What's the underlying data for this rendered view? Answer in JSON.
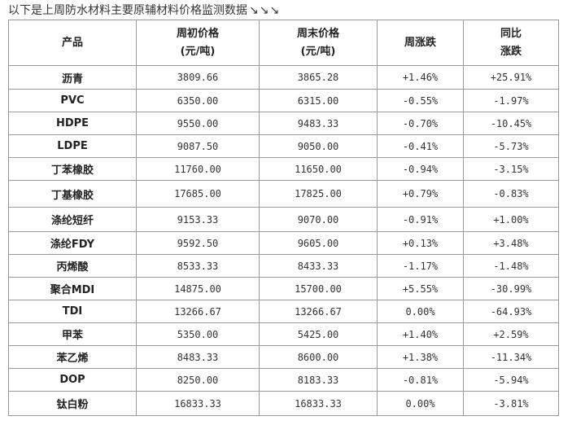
{
  "intro": {
    "text": "以下是上周防水材料主要原辅材料价格监测数据",
    "arrows": "↘↘↘"
  },
  "header": {
    "product": "产品",
    "start_price_line1": "周初价格",
    "start_price_line2": "(元/吨)",
    "end_price_line1": "周末价格",
    "end_price_line2": "(元/吨)",
    "weekly_change": "周涨跌",
    "yoy_line1": "同比",
    "yoy_line2": "涨跌"
  },
  "colors": {
    "up": "#e00000",
    "down": "#008000",
    "border": "#9a9a9a"
  },
  "rows": [
    {
      "name": "沥青",
      "start": "3809.66",
      "end": "3865.28",
      "weekly": "+1.46%",
      "yoy": "+25.91%"
    },
    {
      "name": "PVC",
      "start": "6350.00",
      "end": "6315.00",
      "weekly": "-0.55%",
      "yoy": "-1.97%"
    },
    {
      "name": "HDPE",
      "start": "9550.00",
      "end": "9483.33",
      "weekly": "-0.70%",
      "yoy": "-10.45%"
    },
    {
      "name": "LDPE",
      "start": "9087.50",
      "end": "9050.00",
      "weekly": "-0.41%",
      "yoy": "-5.73%"
    },
    {
      "name": "丁苯橡胶",
      "start": "11760.00",
      "end": "11650.00",
      "weekly": "-0.94%",
      "yoy": "-3.15%"
    },
    {
      "name": "丁基橡胶",
      "start": "17685.00",
      "end": "17825.00",
      "weekly": "+0.79%",
      "yoy": "-0.83%"
    },
    {
      "name": "涤纶短纤",
      "start": "9153.33",
      "end": "9070.00",
      "weekly": "-0.91%",
      "yoy": "+1.00%"
    },
    {
      "name": "涤纶FDY",
      "start": "9592.50",
      "end": "9605.00",
      "weekly": "+0.13%",
      "yoy": "+3.48%"
    },
    {
      "name": "丙烯酸",
      "start": "8533.33",
      "end": "8433.33",
      "weekly": "-1.17%",
      "yoy": "-1.48%"
    },
    {
      "name": "聚合MDI",
      "start": "14875.00",
      "end": "15700.00",
      "weekly": "+5.55%",
      "yoy": "-30.99%"
    },
    {
      "name": "TDI",
      "start": "13266.67",
      "end": "13266.67",
      "weekly": "0.00%",
      "yoy": "-64.93%"
    },
    {
      "name": "甲苯",
      "start": "5350.00",
      "end": "5425.00",
      "weekly": "+1.40%",
      "yoy": "+2.59%"
    },
    {
      "name": "苯乙烯",
      "start": "8483.33",
      "end": "8600.00",
      "weekly": "+1.38%",
      "yoy": "-11.34%"
    },
    {
      "name": "DOP",
      "start": "8250.00",
      "end": "8183.33",
      "weekly": "-0.81%",
      "yoy": "-5.94%"
    },
    {
      "name": "钛白粉",
      "start": "16833.33",
      "end": "16833.33",
      "weekly": "0.00%",
      "yoy": "-3.81%"
    }
  ]
}
